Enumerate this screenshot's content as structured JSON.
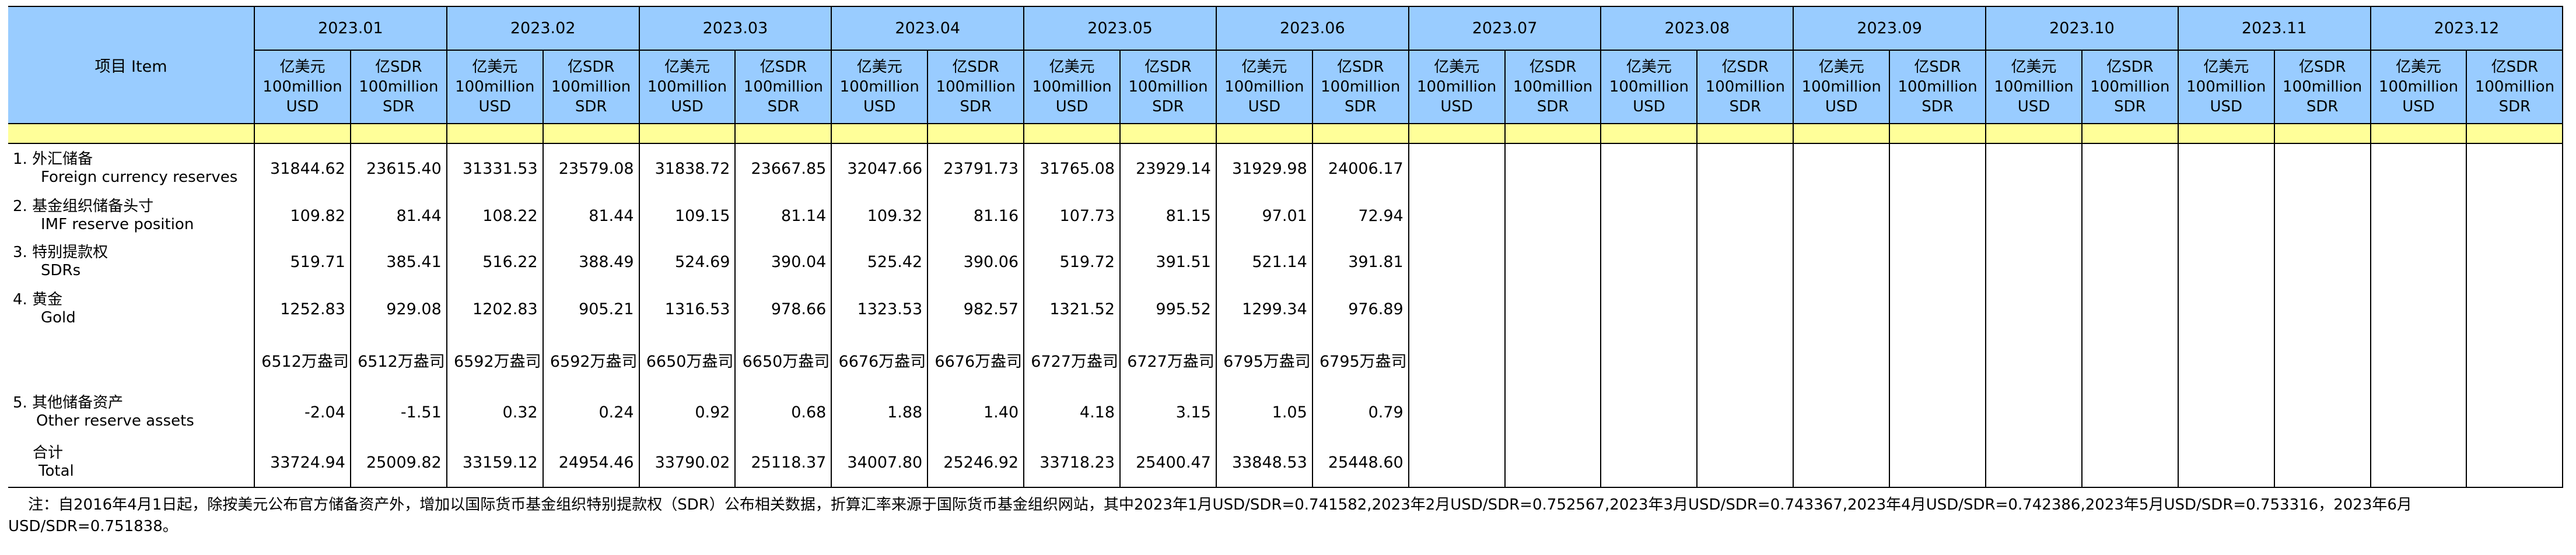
{
  "table": {
    "item_header": "项目  Item",
    "months": [
      "2023.01",
      "2023.02",
      "2023.03",
      "2023.04",
      "2023.05",
      "2023.06",
      "2023.07",
      "2023.08",
      "2023.09",
      "2023.10",
      "2023.11",
      "2023.12"
    ],
    "units": {
      "usd": {
        "cn": "亿美元",
        "en1": "100million",
        "en2": "USD"
      },
      "sdr": {
        "cn": "亿SDR",
        "en1": "100million",
        "en2": "SDR"
      }
    },
    "rows": [
      {
        "cn": "1.  外汇储备",
        "en": "Foreign currency reserves",
        "values": [
          "31844.62",
          "23615.40",
          "31331.53",
          "23579.08",
          "31838.72",
          "23667.85",
          "32047.66",
          "23791.73",
          "31765.08",
          "23929.14",
          "31929.98",
          "24006.17",
          "",
          "",
          "",
          "",
          "",
          "",
          "",
          "",
          "",
          "",
          "",
          ""
        ]
      },
      {
        "cn": "2.  基金组织储备头寸",
        "en": "IMF reserve position",
        "values": [
          "109.82",
          "81.44",
          "108.22",
          "81.44",
          "109.15",
          "81.14",
          "109.32",
          "81.16",
          "107.73",
          "81.15",
          "97.01",
          "72.94",
          "",
          "",
          "",
          "",
          "",
          "",
          "",
          "",
          "",
          "",
          "",
          ""
        ]
      },
      {
        "cn": "3.  特别提款权",
        "en": "SDRs",
        "values": [
          "519.71",
          "385.41",
          "516.22",
          "388.49",
          "524.69",
          "390.04",
          "525.42",
          "390.06",
          "519.72",
          "391.51",
          "521.14",
          "391.81",
          "",
          "",
          "",
          "",
          "",
          "",
          "",
          "",
          "",
          "",
          "",
          ""
        ]
      },
      {
        "cn": "4.  黄金",
        "en": "Gold",
        "values": [
          "1252.83",
          "929.08",
          "1202.83",
          "905.21",
          "1316.53",
          "978.66",
          "1323.53",
          "982.57",
          "1321.52",
          "995.52",
          "1299.34",
          "976.89",
          "",
          "",
          "",
          "",
          "",
          "",
          "",
          "",
          "",
          "",
          "",
          ""
        ]
      },
      {
        "cn": "",
        "en": "",
        "values": [
          "6512万盎司",
          "6512万盎司",
          "6592万盎司",
          "6592万盎司",
          "6650万盎司",
          "6650万盎司",
          "6676万盎司",
          "6676万盎司",
          "6727万盎司",
          "6727万盎司",
          "6795万盎司",
          "6795万盎司",
          "",
          "",
          "",
          "",
          "",
          "",
          "",
          "",
          "",
          "",
          "",
          ""
        ]
      },
      {
        "cn": "5.  其他储备资产",
        "en": "Other reserve assets",
        "values": [
          "-2.04",
          "-1.51",
          "0.32",
          "0.24",
          "0.92",
          "0.68",
          "1.88",
          "1.40",
          "4.18",
          "3.15",
          "1.05",
          "0.79",
          "",
          "",
          "",
          "",
          "",
          "",
          "",
          "",
          "",
          "",
          "",
          ""
        ]
      },
      {
        "cn": "合计",
        "en": "Total",
        "values": [
          "33724.94",
          "25009.82",
          "33159.12",
          "24954.46",
          "33790.02",
          "25118.37",
          "34007.80",
          "25246.92",
          "33718.23",
          "25400.47",
          "33848.53",
          "25448.60",
          "",
          "",
          "",
          "",
          "",
          "",
          "",
          "",
          "",
          "",
          "",
          ""
        ]
      }
    ]
  },
  "note": {
    "line1": "注：自2016年4月1日起，除按美元公布官方储备资产外，增加以国际货币基金组织特别提款权（SDR）公布相关数据，折算汇率来源于国际货币基金组织网站，其中2023年1月USD/SDR=0.741582,2023年2月USD/SDR=0.752567,2023年3月USD/SDR=0.743367,2023年4月USD/SDR=0.742386,2023年5月USD/SDR=0.753316，2023年6月",
    "line2": "USD/SDR=0.751838。"
  },
  "colors": {
    "header_bg": "#99CCFF",
    "band_bg": "#FFFF99",
    "border": "#000000"
  }
}
